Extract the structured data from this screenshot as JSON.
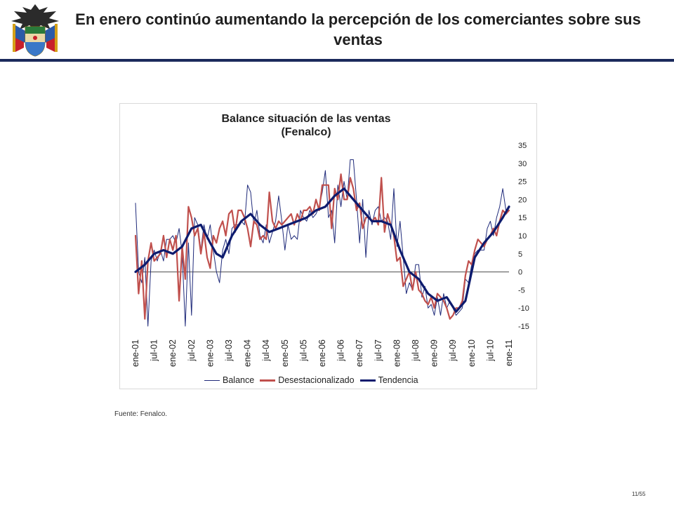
{
  "slide": {
    "title": "En enero continúo aumentando la percepción de los comerciantes sobre sus ventas",
    "source": "Fuente: Fenalco.",
    "page": "11/55",
    "header_rule_color": "#1b2a5c",
    "logo_icon": "colombia-coat-of-arms-icon"
  },
  "chart_data": {
    "type": "line",
    "title_line1": "Balance situación de las  ventas",
    "title_line2": "(Fenalco)",
    "ylim": [
      -15,
      35
    ],
    "yticks": [
      "35",
      "30",
      "25",
      "20",
      "15",
      "10",
      "5",
      "0",
      "-5",
      "-10",
      "-15"
    ],
    "y_axis_position": "right",
    "zero_line": true,
    "grid": false,
    "legend_position": "bottom",
    "x_tick_labels": [
      "ene-01",
      "jul-01",
      "ene-02",
      "jul-02",
      "ene-03",
      "jul-03",
      "ene-04",
      "jul-04",
      "ene-05",
      "jul-05",
      "ene-06",
      "jul-06",
      "ene-07",
      "jul-07",
      "ene-08",
      "jul-08",
      "ene-09",
      "jul-09",
      "ene-10",
      "jul-10",
      "ene-11"
    ],
    "series": [
      {
        "name": "Balance",
        "color": "#1f2a7a",
        "width": 1,
        "anchors": [
          [
            "2001-01",
            19
          ],
          [
            "2001-02",
            0
          ],
          [
            "2001-03",
            -3
          ],
          [
            "2001-04",
            4
          ],
          [
            "2001-05",
            -15
          ],
          [
            "2001-06",
            3
          ],
          [
            "2001-07",
            6
          ],
          [
            "2001-08",
            3
          ],
          [
            "2001-09",
            6
          ],
          [
            "2001-10",
            3
          ],
          [
            "2001-11",
            9
          ],
          [
            "2001-12",
            9
          ],
          [
            "2002-01",
            10
          ],
          [
            "2002-02",
            8
          ],
          [
            "2002-03",
            12
          ],
          [
            "2002-04",
            5
          ],
          [
            "2002-05",
            -15
          ],
          [
            "2002-06",
            8
          ],
          [
            "2002-07",
            -12
          ],
          [
            "2002-08",
            15
          ],
          [
            "2002-09",
            13
          ],
          [
            "2002-10",
            6
          ],
          [
            "2002-11",
            13
          ],
          [
            "2002-12",
            9
          ],
          [
            "2003-01",
            13
          ],
          [
            "2003-02",
            6
          ],
          [
            "2003-03",
            0
          ],
          [
            "2003-04",
            -3
          ],
          [
            "2003-05",
            6
          ],
          [
            "2003-06",
            9
          ],
          [
            "2003-07",
            5
          ],
          [
            "2003-08",
            12
          ],
          [
            "2003-09",
            13
          ],
          [
            "2003-10",
            13
          ],
          [
            "2003-11",
            14
          ],
          [
            "2003-12",
            13
          ],
          [
            "2004-01",
            24
          ],
          [
            "2004-02",
            22
          ],
          [
            "2004-03",
            13
          ],
          [
            "2004-04",
            17
          ],
          [
            "2004-05",
            10
          ],
          [
            "2004-06",
            8
          ],
          [
            "2004-07",
            13
          ],
          [
            "2004-08",
            8
          ],
          [
            "2004-09",
            11
          ],
          [
            "2004-10",
            14
          ],
          [
            "2004-11",
            21
          ],
          [
            "2004-12",
            14
          ],
          [
            "2005-01",
            6
          ],
          [
            "2005-02",
            13
          ],
          [
            "2005-03",
            9
          ],
          [
            "2005-04",
            10
          ],
          [
            "2005-05",
            9
          ],
          [
            "2005-06",
            17
          ],
          [
            "2005-07",
            15
          ],
          [
            "2005-08",
            14
          ],
          [
            "2005-09",
            17
          ],
          [
            "2005-10",
            15
          ],
          [
            "2005-11",
            16
          ],
          [
            "2005-12",
            18
          ],
          [
            "2006-01",
            22
          ],
          [
            "2006-02",
            28
          ],
          [
            "2006-03",
            15
          ],
          [
            "2006-04",
            17
          ],
          [
            "2006-05",
            8
          ],
          [
            "2006-06",
            24
          ],
          [
            "2006-07",
            18
          ],
          [
            "2006-08",
            25
          ],
          [
            "2006-09",
            20
          ],
          [
            "2006-10",
            31
          ],
          [
            "2006-11",
            31
          ],
          [
            "2006-12",
            20
          ],
          [
            "2007-01",
            8
          ],
          [
            "2007-02",
            20
          ],
          [
            "2007-03",
            4
          ],
          [
            "2007-04",
            17
          ],
          [
            "2007-05",
            13
          ],
          [
            "2007-06",
            17
          ],
          [
            "2007-07",
            18
          ],
          [
            "2007-08",
            14
          ],
          [
            "2007-09",
            15
          ],
          [
            "2007-10",
            14
          ],
          [
            "2007-11",
            9
          ],
          [
            "2007-12",
            23
          ],
          [
            "2008-01",
            7
          ],
          [
            "2008-02",
            14
          ],
          [
            "2008-03",
            4
          ],
          [
            "2008-04",
            -6
          ],
          [
            "2008-05",
            -3
          ],
          [
            "2008-06",
            -5
          ],
          [
            "2008-07",
            2
          ],
          [
            "2008-08",
            2
          ],
          [
            "2008-09",
            -7
          ],
          [
            "2008-10",
            -4
          ],
          [
            "2008-11",
            -10
          ],
          [
            "2008-12",
            -9
          ],
          [
            "2009-01",
            -12
          ],
          [
            "2009-02",
            -7
          ],
          [
            "2009-03",
            -12
          ],
          [
            "2009-04",
            -6
          ],
          [
            "2009-05",
            -10
          ],
          [
            "2009-06",
            -8
          ],
          [
            "2009-07",
            -10
          ],
          [
            "2009-08",
            -12
          ],
          [
            "2009-09",
            -11
          ],
          [
            "2009-10",
            -10
          ],
          [
            "2009-11",
            -2
          ],
          [
            "2009-12",
            -3
          ],
          [
            "2010-01",
            2
          ],
          [
            "2010-02",
            5
          ],
          [
            "2010-03",
            6
          ],
          [
            "2010-04",
            6
          ],
          [
            "2010-05",
            6
          ],
          [
            "2010-06",
            12
          ],
          [
            "2010-07",
            14
          ],
          [
            "2010-08",
            10
          ],
          [
            "2010-09",
            15
          ],
          [
            "2010-10",
            18
          ],
          [
            "2010-11",
            23
          ],
          [
            "2010-12",
            17
          ],
          [
            "2011-01",
            18
          ]
        ]
      },
      {
        "name": "Desestacionalizado",
        "color": "#c0504d",
        "width": 2.2,
        "anchors": [
          [
            "2001-01",
            10
          ],
          [
            "2001-02",
            -6
          ],
          [
            "2001-03",
            3
          ],
          [
            "2001-04",
            -13
          ],
          [
            "2001-05",
            3
          ],
          [
            "2001-06",
            8
          ],
          [
            "2001-07",
            3
          ],
          [
            "2001-08",
            4
          ],
          [
            "2001-09",
            5
          ],
          [
            "2001-10",
            10
          ],
          [
            "2001-11",
            4
          ],
          [
            "2001-12",
            9
          ],
          [
            "2002-01",
            6
          ],
          [
            "2002-02",
            10
          ],
          [
            "2002-03",
            -8
          ],
          [
            "2002-04",
            7
          ],
          [
            "2002-05",
            -2
          ],
          [
            "2002-06",
            18
          ],
          [
            "2002-07",
            15
          ],
          [
            "2002-08",
            10
          ],
          [
            "2002-09",
            12
          ],
          [
            "2002-10",
            5
          ],
          [
            "2002-11",
            11
          ],
          [
            "2002-12",
            4
          ],
          [
            "2003-01",
            1
          ],
          [
            "2003-02",
            10
          ],
          [
            "2003-03",
            8
          ],
          [
            "2003-04",
            12
          ],
          [
            "2003-05",
            14
          ],
          [
            "2003-06",
            10
          ],
          [
            "2003-07",
            16
          ],
          [
            "2003-08",
            17
          ],
          [
            "2003-09",
            11
          ],
          [
            "2003-10",
            17
          ],
          [
            "2003-11",
            17
          ],
          [
            "2003-12",
            15
          ],
          [
            "2004-01",
            12
          ],
          [
            "2004-02",
            7
          ],
          [
            "2004-03",
            14
          ],
          [
            "2004-04",
            13
          ],
          [
            "2004-05",
            9
          ],
          [
            "2004-06",
            10
          ],
          [
            "2004-07",
            9
          ],
          [
            "2004-08",
            22
          ],
          [
            "2004-09",
            14
          ],
          [
            "2004-10",
            12
          ],
          [
            "2004-11",
            14
          ],
          [
            "2004-12",
            13
          ],
          [
            "2005-01",
            14
          ],
          [
            "2005-02",
            15
          ],
          [
            "2005-03",
            16
          ],
          [
            "2005-04",
            13
          ],
          [
            "2005-05",
            16
          ],
          [
            "2005-06",
            14
          ],
          [
            "2005-07",
            17
          ],
          [
            "2005-08",
            17
          ],
          [
            "2005-09",
            18
          ],
          [
            "2005-10",
            16
          ],
          [
            "2005-11",
            20
          ],
          [
            "2005-12",
            17
          ],
          [
            "2006-01",
            24
          ],
          [
            "2006-02",
            24
          ],
          [
            "2006-03",
            24
          ],
          [
            "2006-04",
            12
          ],
          [
            "2006-05",
            23
          ],
          [
            "2006-06",
            20
          ],
          [
            "2006-07",
            27
          ],
          [
            "2006-08",
            20
          ],
          [
            "2006-09",
            20
          ],
          [
            "2006-10",
            26
          ],
          [
            "2006-11",
            23
          ],
          [
            "2006-12",
            17
          ],
          [
            "2007-01",
            19
          ],
          [
            "2007-02",
            12
          ],
          [
            "2007-03",
            15
          ],
          [
            "2007-04",
            15
          ],
          [
            "2007-05",
            14
          ],
          [
            "2007-06",
            15
          ],
          [
            "2007-07",
            13
          ],
          [
            "2007-08",
            26
          ],
          [
            "2007-09",
            11
          ],
          [
            "2007-10",
            16
          ],
          [
            "2007-11",
            13
          ],
          [
            "2007-12",
            10
          ],
          [
            "2008-01",
            3
          ],
          [
            "2008-02",
            4
          ],
          [
            "2008-03",
            -4
          ],
          [
            "2008-04",
            -2
          ],
          [
            "2008-05",
            0
          ],
          [
            "2008-06",
            -5
          ],
          [
            "2008-07",
            0
          ],
          [
            "2008-08",
            -5
          ],
          [
            "2008-09",
            -6
          ],
          [
            "2008-10",
            -8
          ],
          [
            "2008-11",
            -9
          ],
          [
            "2008-12",
            -7
          ],
          [
            "2009-01",
            -10
          ],
          [
            "2009-02",
            -6
          ],
          [
            "2009-03",
            -7
          ],
          [
            "2009-04",
            -8
          ],
          [
            "2009-05",
            -10
          ],
          [
            "2009-06",
            -13
          ],
          [
            "2009-07",
            -12
          ],
          [
            "2009-08",
            -10
          ],
          [
            "2009-09",
            -10
          ],
          [
            "2009-10",
            -8
          ],
          [
            "2009-11",
            -1
          ],
          [
            "2009-12",
            3
          ],
          [
            "2010-01",
            2
          ],
          [
            "2010-02",
            6
          ],
          [
            "2010-03",
            9
          ],
          [
            "2010-04",
            8
          ],
          [
            "2010-05",
            7
          ],
          [
            "2010-06",
            9
          ],
          [
            "2010-07",
            10
          ],
          [
            "2010-08",
            12
          ],
          [
            "2010-09",
            10
          ],
          [
            "2010-10",
            14
          ],
          [
            "2010-11",
            17
          ],
          [
            "2010-12",
            16
          ],
          [
            "2011-01",
            17
          ]
        ]
      },
      {
        "name": "Tendencia",
        "color": "#0d1b6e",
        "width": 3.2,
        "anchors": [
          [
            "2001-01",
            0
          ],
          [
            "2001-04",
            2
          ],
          [
            "2001-07",
            5
          ],
          [
            "2001-10",
            6
          ],
          [
            "2002-01",
            5
          ],
          [
            "2002-04",
            7
          ],
          [
            "2002-07",
            12
          ],
          [
            "2002-10",
            13
          ],
          [
            "2003-01",
            8
          ],
          [
            "2003-03",
            5
          ],
          [
            "2003-05",
            4
          ],
          [
            "2003-08",
            10
          ],
          [
            "2003-11",
            14
          ],
          [
            "2004-02",
            16
          ],
          [
            "2004-05",
            13
          ],
          [
            "2004-08",
            11
          ],
          [
            "2004-11",
            12
          ],
          [
            "2005-02",
            13
          ],
          [
            "2005-05",
            14
          ],
          [
            "2005-08",
            15
          ],
          [
            "2005-11",
            17
          ],
          [
            "2006-02",
            18
          ],
          [
            "2006-05",
            21
          ],
          [
            "2006-08",
            23
          ],
          [
            "2006-11",
            20
          ],
          [
            "2007-02",
            17
          ],
          [
            "2007-05",
            14
          ],
          [
            "2007-08",
            14
          ],
          [
            "2007-11",
            13
          ],
          [
            "2008-02",
            6
          ],
          [
            "2008-05",
            0
          ],
          [
            "2008-08",
            -2
          ],
          [
            "2008-11",
            -6
          ],
          [
            "2009-02",
            -8
          ],
          [
            "2009-05",
            -7
          ],
          [
            "2009-08",
            -11
          ],
          [
            "2009-11",
            -8
          ],
          [
            "2010-02",
            4
          ],
          [
            "2010-05",
            8
          ],
          [
            "2010-08",
            11
          ],
          [
            "2010-11",
            15
          ],
          [
            "2011-01",
            18
          ]
        ]
      }
    ]
  }
}
